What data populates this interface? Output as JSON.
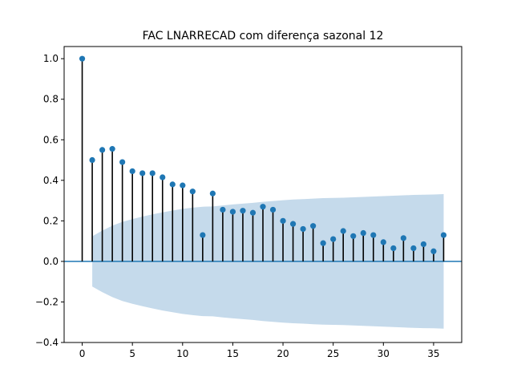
{
  "chart_data": {
    "type": "scatter",
    "subtype": "acf-stem",
    "title": "FAC LNARRECAD com diferença sazonal 12",
    "xlabel": "",
    "ylabel": "",
    "xlim": [
      -1.8,
      37.8
    ],
    "ylim": [
      -0.4,
      1.06
    ],
    "x_ticks": [
      0,
      5,
      10,
      15,
      20,
      25,
      30,
      35
    ],
    "x_tick_labels": [
      "0",
      "5",
      "10",
      "15",
      "20",
      "25",
      "30",
      "35"
    ],
    "y_ticks": [
      -0.4,
      -0.2,
      0.0,
      0.2,
      0.4,
      0.6,
      0.8,
      1.0
    ],
    "y_tick_labels": [
      "−0.4",
      "−0.2",
      "0.0",
      "0.2",
      "0.4",
      "0.6",
      "0.8",
      "1.0"
    ],
    "grid": false,
    "colors": {
      "marker": "#1f77b4",
      "stem": "#000000",
      "zero_line": "#1f77b4",
      "confidence_band": "#c5daeb"
    },
    "lags": [
      0,
      1,
      2,
      3,
      4,
      5,
      6,
      7,
      8,
      9,
      10,
      11,
      12,
      13,
      14,
      15,
      16,
      17,
      18,
      19,
      20,
      21,
      22,
      23,
      24,
      25,
      26,
      27,
      28,
      29,
      30,
      31,
      32,
      33,
      34,
      35,
      36
    ],
    "values": [
      1.0,
      0.5,
      0.55,
      0.555,
      0.49,
      0.445,
      0.435,
      0.435,
      0.415,
      0.38,
      0.375,
      0.345,
      0.13,
      0.335,
      0.255,
      0.245,
      0.25,
      0.24,
      0.27,
      0.255,
      0.2,
      0.185,
      0.16,
      0.175,
      0.09,
      0.11,
      0.15,
      0.125,
      0.14,
      0.13,
      0.095,
      0.065,
      0.115,
      0.065,
      0.085,
      0.05,
      0.13
    ],
    "confidence_upper": [
      null,
      0.124,
      0.152,
      0.176,
      0.195,
      0.209,
      0.221,
      0.232,
      0.242,
      0.251,
      0.259,
      0.265,
      0.27,
      0.271,
      0.276,
      0.281,
      0.285,
      0.289,
      0.294,
      0.298,
      0.302,
      0.305,
      0.307,
      0.31,
      0.312,
      0.313,
      0.314,
      0.316,
      0.318,
      0.32,
      0.322,
      0.324,
      0.326,
      0.328,
      0.329,
      0.33,
      0.332
    ]
  }
}
